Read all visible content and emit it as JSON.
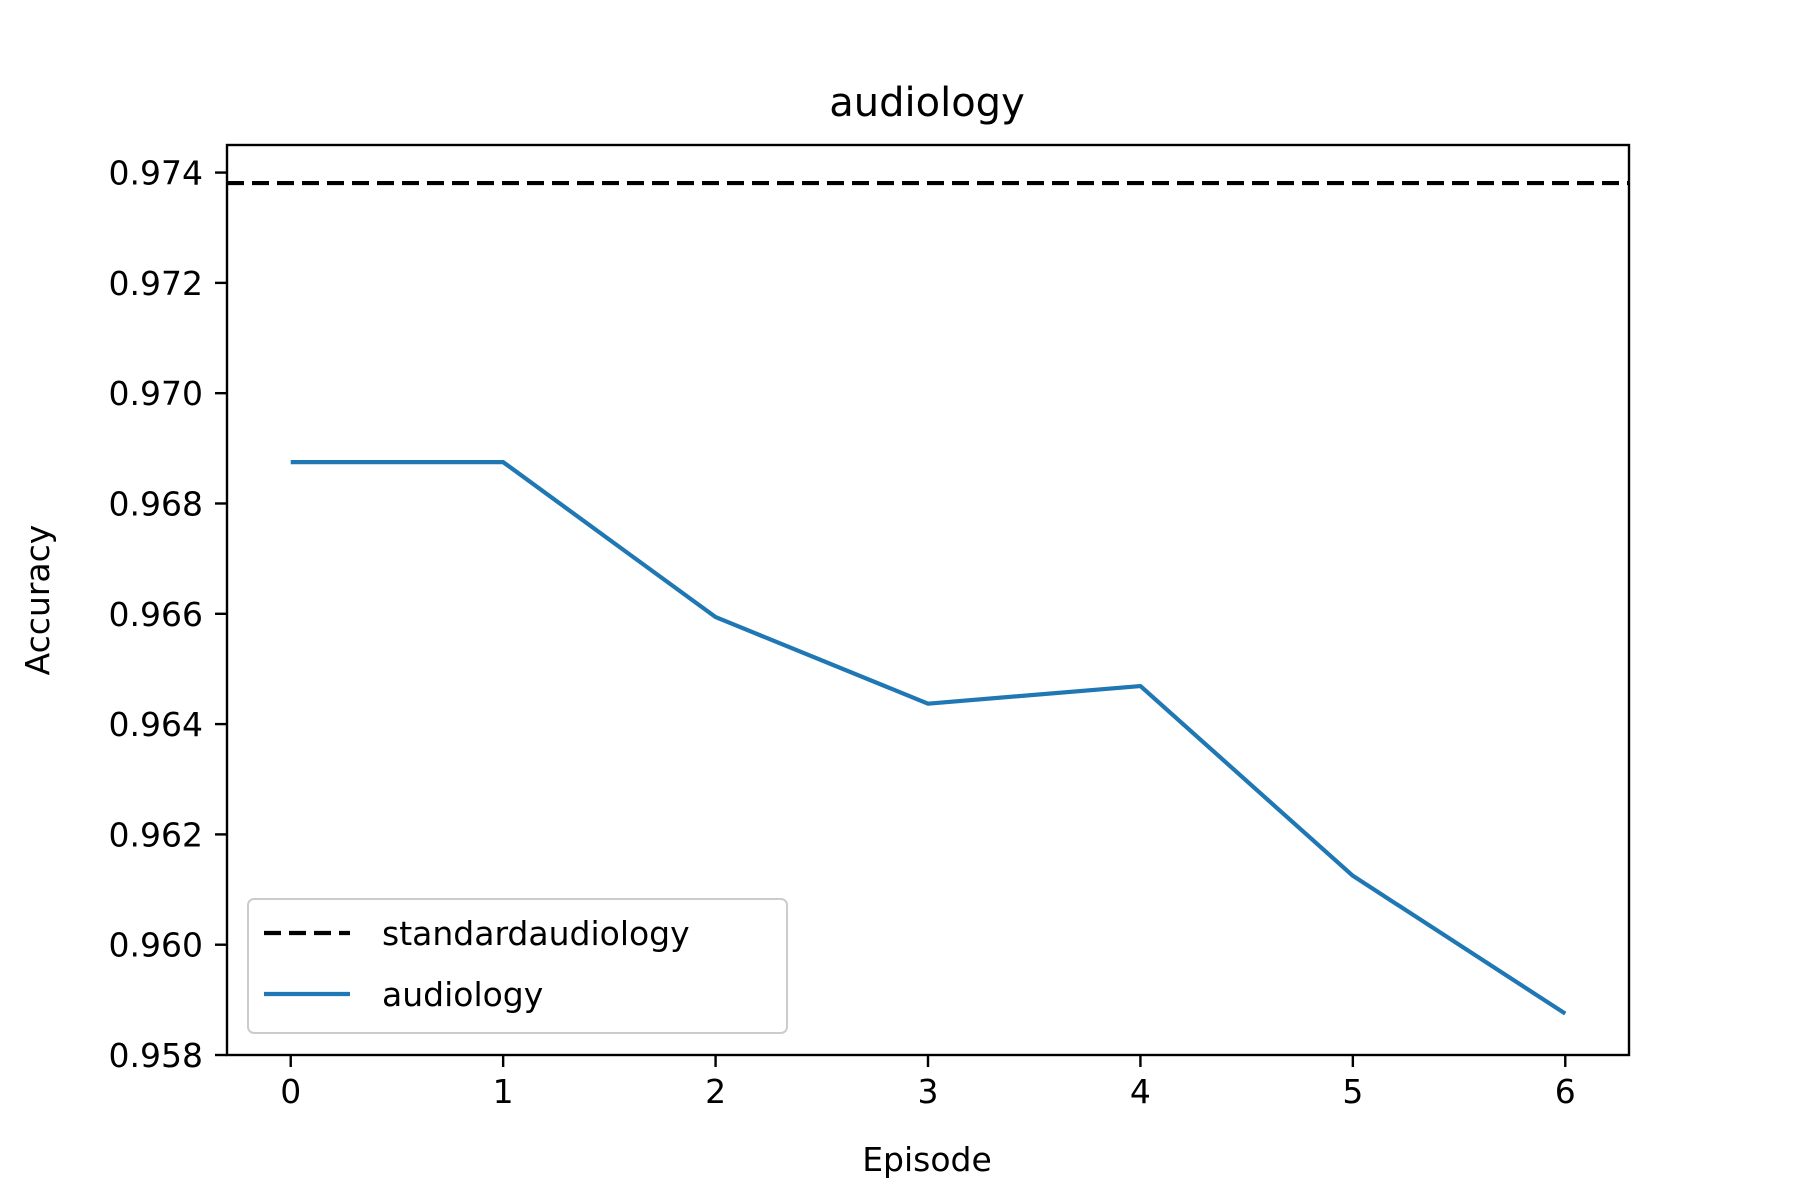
{
  "chart_data": {
    "type": "line",
    "title": "audiology",
    "xlabel": "Episode",
    "ylabel": "Accuracy",
    "xlim": [
      -0.3,
      6.3
    ],
    "ylim": [
      0.958,
      0.9745
    ],
    "xticks": [
      0,
      1,
      2,
      3,
      4,
      5,
      6
    ],
    "xtick_labels": [
      "0",
      "1",
      "2",
      "3",
      "4",
      "5",
      "6"
    ],
    "yticks": [
      0.958,
      0.96,
      0.962,
      0.964,
      0.966,
      0.968,
      0.97,
      0.972,
      0.974
    ],
    "ytick_labels": [
      "0.958",
      "0.960",
      "0.962",
      "0.964",
      "0.966",
      "0.968",
      "0.970",
      "0.972",
      "0.974"
    ],
    "grid": false,
    "legend_position": "lower-left",
    "series": [
      {
        "name": "standardaudiology",
        "style": "dashed",
        "color": "#000000",
        "x": [
          -0.3,
          6.3
        ],
        "values": [
          0.97381,
          0.97381
        ]
      },
      {
        "name": "audiology",
        "style": "solid",
        "color": "#1f77b4",
        "x": [
          0,
          1,
          2,
          3,
          4,
          5,
          6
        ],
        "values": [
          0.96875,
          0.96875,
          0.96594,
          0.96437,
          0.96469,
          0.96125,
          0.95875
        ]
      }
    ]
  }
}
